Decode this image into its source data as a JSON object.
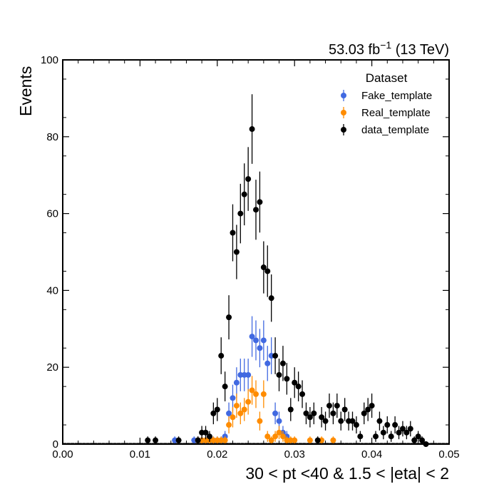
{
  "chart_data": {
    "type": "scatter",
    "title": "",
    "lumi_prefix": "53.03 fb",
    "lumi_exponent": "−1",
    "lumi_suffix": " (13 TeV)",
    "xlabel": "30 < pt <40 & 1.5 < |eta| < 2",
    "ylabel": "Events",
    "xlim": [
      0.0,
      0.05
    ],
    "ylim": [
      0,
      100
    ],
    "xticks": [
      0.0,
      0.01,
      0.02,
      0.03,
      0.04,
      0.05
    ],
    "xtick_labels": [
      "0.00",
      "0.01",
      "0.02",
      "0.03",
      "0.04",
      "0.05"
    ],
    "yticks": [
      0,
      20,
      40,
      60,
      80,
      100
    ],
    "ytick_labels": [
      "0",
      "20",
      "40",
      "60",
      "80",
      "100"
    ],
    "grid": false,
    "legend": {
      "title": "Dataset",
      "placement": "top-right"
    },
    "series": [
      {
        "name": "Fake_template",
        "color": "#4169e1",
        "x": [
          0.0145,
          0.017,
          0.0175,
          0.018,
          0.0185,
          0.019,
          0.0195,
          0.02,
          0.0205,
          0.021,
          0.0215,
          0.022,
          0.0225,
          0.023,
          0.0235,
          0.024,
          0.0245,
          0.025,
          0.0255,
          0.026,
          0.0265,
          0.027,
          0.0275,
          0.028,
          0.0285,
          0.029
        ],
        "y": [
          1,
          1,
          1,
          1,
          1,
          1,
          1,
          1,
          1,
          2,
          8,
          12,
          16,
          18,
          18,
          18,
          28,
          27,
          25,
          27,
          21,
          23,
          8,
          6,
          3,
          2
        ]
      },
      {
        "name": "Real_template",
        "color": "#ff8c00",
        "x": [
          0.0175,
          0.018,
          0.0185,
          0.019,
          0.0195,
          0.02,
          0.0205,
          0.021,
          0.0215,
          0.022,
          0.0225,
          0.023,
          0.0235,
          0.024,
          0.0245,
          0.025,
          0.0255,
          0.026,
          0.0265,
          0.027,
          0.0275,
          0.028,
          0.0285,
          0.029,
          0.0295,
          0.03,
          0.032,
          0.0335,
          0.035
        ],
        "y": [
          1,
          1,
          1,
          1,
          1,
          1,
          1,
          1,
          5,
          7,
          10,
          8,
          9,
          11,
          14,
          13,
          6,
          13,
          2,
          1,
          2,
          3,
          2,
          1,
          1,
          1,
          1,
          1,
          1
        ]
      },
      {
        "name": "data_template",
        "color": "#000000",
        "x": [
          0.011,
          0.012,
          0.015,
          0.0175,
          0.018,
          0.0185,
          0.019,
          0.0195,
          0.02,
          0.0205,
          0.021,
          0.0215,
          0.022,
          0.0225,
          0.023,
          0.0235,
          0.024,
          0.0245,
          0.025,
          0.0255,
          0.026,
          0.0265,
          0.027,
          0.0275,
          0.028,
          0.0285,
          0.029,
          0.0295,
          0.03,
          0.0305,
          0.031,
          0.0315,
          0.032,
          0.0325,
          0.033,
          0.0335,
          0.034,
          0.0345,
          0.035,
          0.0355,
          0.036,
          0.0365,
          0.037,
          0.0375,
          0.038,
          0.0385,
          0.039,
          0.0395,
          0.04,
          0.0405,
          0.041,
          0.0415,
          0.042,
          0.0425,
          0.043,
          0.0435,
          0.044,
          0.0445,
          0.045,
          0.0455,
          0.046,
          0.0465,
          0.047
        ],
        "y": [
          1,
          1,
          1,
          1,
          3,
          3,
          2,
          8,
          9,
          23,
          15,
          33,
          55,
          50,
          60,
          65,
          69,
          82,
          61,
          63,
          46,
          45,
          38,
          23,
          18,
          21,
          17,
          9,
          16,
          15,
          13,
          8,
          7,
          8,
          1,
          7,
          6,
          10,
          8,
          10,
          6,
          9,
          6,
          6,
          5,
          2,
          8,
          9,
          10,
          2,
          6,
          3,
          5,
          2,
          5,
          3,
          4,
          3,
          4,
          1,
          2,
          1,
          0
        ]
      }
    ]
  }
}
